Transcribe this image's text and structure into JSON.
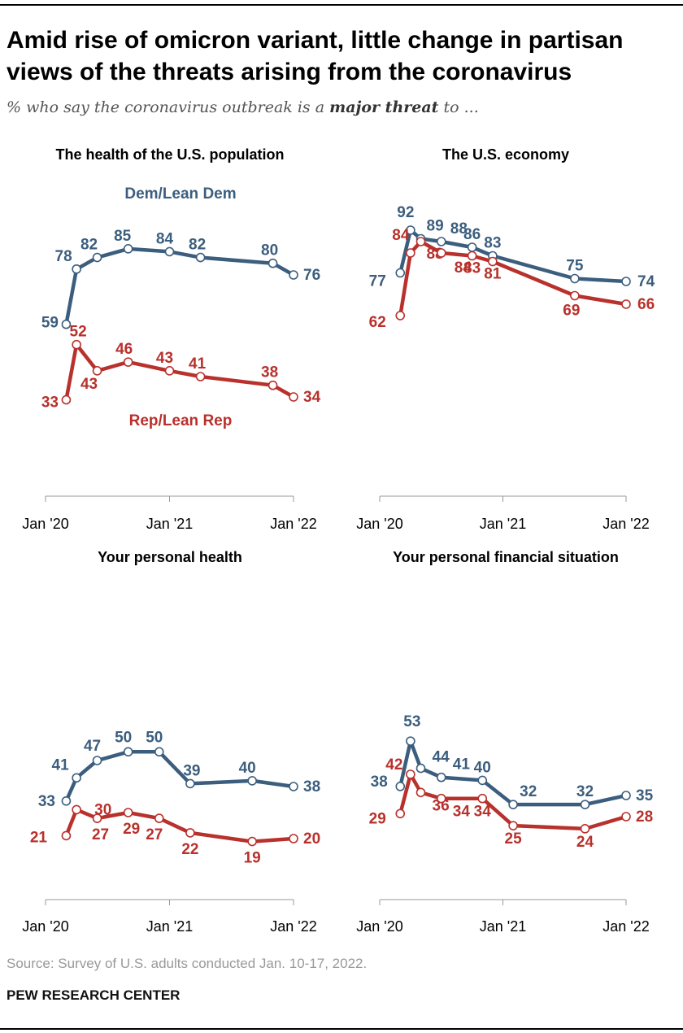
{
  "title": "Amid rise of omicron variant, little change in partisan views of the threats arising from the coronavirus",
  "subtitle": {
    "before": "% who say the coronavirus outbreak is a ",
    "emphasis": "major threat",
    "after": " to ..."
  },
  "source": "Source: Survey of U.S. adults conducted Jan. 10-17, 2022.",
  "org": "PEW RESEARCH CENTER",
  "colors": {
    "dem": "#3c5e7e",
    "rep": "#b8312c",
    "axis": "#999999"
  },
  "chart_data": [
    {
      "type": "line",
      "title": "The health of the U.S. population",
      "x_ticks": [
        "Jan '20",
        "Jan '21",
        "Jan '22"
      ],
      "x": [
        "2020-03",
        "2020-04",
        "2020-06",
        "2020-09",
        "2021-01",
        "2021-04",
        "2021-11",
        "2022-01"
      ],
      "series_labels": [
        "Dem/Lean Dem",
        "Rep/Lean Rep"
      ],
      "series": [
        {
          "party": "dem",
          "values": [
            59,
            78,
            82,
            85,
            84,
            82,
            80,
            76
          ],
          "labels": [
            "59",
            "78",
            "82",
            "85",
            "84",
            "82",
            "80",
            "76"
          ]
        },
        {
          "party": "rep",
          "values": [
            33,
            52,
            43,
            46,
            43,
            41,
            38,
            34
          ],
          "labels": [
            "33",
            "52",
            "43",
            "46",
            "43",
            "41",
            "38",
            "34"
          ]
        }
      ]
    },
    {
      "type": "line",
      "title": "The U.S. economy",
      "x_ticks": [
        "Jan '20",
        "Jan '21",
        "Jan '22"
      ],
      "x": [
        "2020-03",
        "2020-04",
        "2020-05",
        "2020-07",
        "2020-10",
        "2020-12",
        "2021-08",
        "2022-01"
      ],
      "series": [
        {
          "party": "dem",
          "values": [
            77,
            92,
            89,
            88,
            86,
            83,
            75,
            74
          ],
          "labels": [
            "77",
            "92",
            "89",
            "88",
            "86",
            "83",
            "75",
            "74"
          ]
        },
        {
          "party": "rep",
          "values": [
            62,
            84,
            88,
            84,
            83,
            81,
            69,
            66
          ],
          "labels": [
            "62",
            "84",
            "88",
            "84",
            "83",
            "81",
            "69",
            "66"
          ]
        }
      ]
    },
    {
      "type": "line",
      "title": "Your personal health",
      "x_ticks": [
        "Jan '20",
        "Jan '21",
        "Jan '22"
      ],
      "x": [
        "2020-03",
        "2020-04",
        "2020-06",
        "2020-09",
        "2020-12",
        "2021-03",
        "2021-09",
        "2022-01"
      ],
      "series": [
        {
          "party": "dem",
          "values": [
            33,
            41,
            47,
            50,
            50,
            39,
            40,
            38
          ],
          "labels": [
            "33",
            "41",
            "47",
            "50",
            "50",
            "39",
            "40",
            "38"
          ]
        },
        {
          "party": "rep",
          "values": [
            21,
            30,
            27,
            29,
            27,
            22,
            19,
            20
          ],
          "labels": [
            "21",
            "30",
            "27",
            "29",
            "27",
            "22",
            "19",
            "20"
          ]
        }
      ]
    },
    {
      "type": "line",
      "title": "Your personal financial situation",
      "x_ticks": [
        "Jan '20",
        "Jan '21",
        "Jan '22"
      ],
      "x": [
        "2020-03",
        "2020-04",
        "2020-05",
        "2020-07",
        "2020-11",
        "2021-02",
        "2021-09",
        "2022-01"
      ],
      "series": [
        {
          "party": "dem",
          "values": [
            38,
            53,
            44,
            41,
            40,
            32,
            32,
            35
          ],
          "labels": [
            "38",
            "53",
            "44",
            "41",
            "40",
            "32",
            "32",
            "35"
          ]
        },
        {
          "party": "rep",
          "values": [
            29,
            42,
            36,
            34,
            34,
            25,
            24,
            28
          ],
          "labels": [
            "29",
            "42",
            "36",
            "34",
            "34",
            "25",
            "24",
            "28"
          ]
        }
      ]
    }
  ]
}
